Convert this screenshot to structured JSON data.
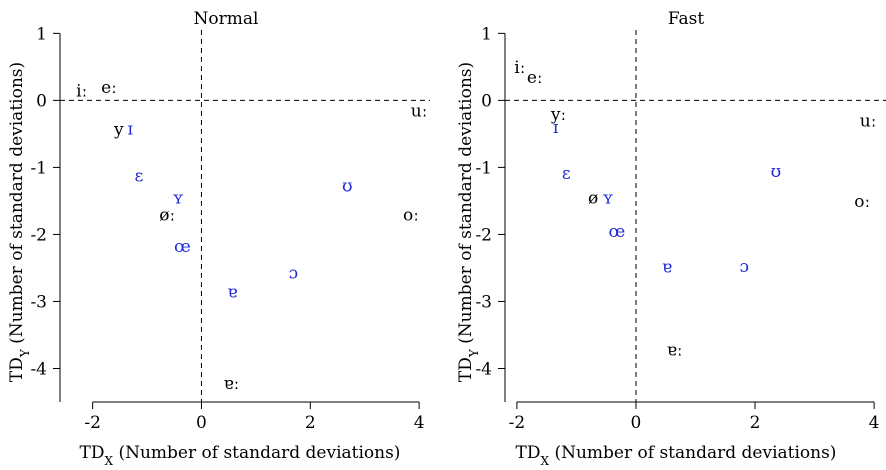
{
  "chart_data": [
    {
      "type": "scatter",
      "title": "Normal",
      "xlabel": "TD",
      "xlabel_sub": "X",
      "xlabel_rest": " (Number of standard deviations)",
      "ylabel": "TD",
      "ylabel_sub": "Y",
      "ylabel_rest": " (Number of standard deviations)",
      "xlim": [
        -2.6,
        4.2
      ],
      "ylim": [
        -4.5,
        1.05
      ],
      "xticks": [
        -2,
        0,
        2,
        4
      ],
      "yticks": [
        1,
        0,
        -1,
        -2,
        -3,
        -4
      ],
      "reference_lines": {
        "x": 0,
        "y": 0
      },
      "colors": {
        "black": "#000000",
        "blue": "#1f2bd6"
      },
      "points": [
        {
          "label": "iː",
          "x": -2.2,
          "y": 0.15,
          "color": "black"
        },
        {
          "label": "eː",
          "x": -1.7,
          "y": 0.2,
          "color": "black"
        },
        {
          "label": "uː",
          "x": 4.0,
          "y": -0.15,
          "color": "black"
        },
        {
          "label": "y",
          "x": -1.52,
          "y": -0.43,
          "color": "black"
        },
        {
          "label": "ɪ",
          "x": -1.31,
          "y": -0.42,
          "color": "blue"
        },
        {
          "label": "ɛ",
          "x": -1.15,
          "y": -1.12,
          "color": "blue"
        },
        {
          "label": "ʏ",
          "x": -0.43,
          "y": -1.45,
          "color": "blue"
        },
        {
          "label": "øː",
          "x": -0.63,
          "y": -1.7,
          "color": "black"
        },
        {
          "label": "œ",
          "x": -0.35,
          "y": -2.17,
          "color": "blue"
        },
        {
          "label": "ʊ",
          "x": 2.68,
          "y": -1.27,
          "color": "blue"
        },
        {
          "label": "oː",
          "x": 3.85,
          "y": -1.7,
          "color": "black"
        },
        {
          "label": "ɔ",
          "x": 1.69,
          "y": -2.57,
          "color": "blue"
        },
        {
          "label": "ɐ",
          "x": 0.57,
          "y": -2.85,
          "color": "blue"
        },
        {
          "label": "ɐː",
          "x": 0.55,
          "y": -4.22,
          "color": "black"
        }
      ]
    },
    {
      "type": "scatter",
      "title": "Fast",
      "xlabel": "TD",
      "xlabel_sub": "X",
      "xlabel_rest": " (Number of standard deviations)",
      "ylabel": "TD",
      "ylabel_sub": "Y",
      "ylabel_rest": " (Number of standard deviations)",
      "xlim": [
        -2.2,
        4.2
      ],
      "ylim": [
        -4.5,
        1.05
      ],
      "xticks": [
        -2,
        0,
        2,
        4
      ],
      "yticks": [
        1,
        0,
        -1,
        -2,
        -3,
        -4
      ],
      "reference_lines": {
        "x": 0,
        "y": 0
      },
      "colors": {
        "black": "#000000",
        "blue": "#1f2bd6"
      },
      "points": [
        {
          "label": "iː",
          "x": -1.95,
          "y": 0.5,
          "color": "black"
        },
        {
          "label": "eː",
          "x": -1.7,
          "y": 0.35,
          "color": "black"
        },
        {
          "label": "yː",
          "x": -1.3,
          "y": -0.2,
          "color": "black"
        },
        {
          "label": "ɪ",
          "x": -1.35,
          "y": -0.4,
          "color": "blue"
        },
        {
          "label": "uː",
          "x": 3.9,
          "y": -0.3,
          "color": "black"
        },
        {
          "label": "ɛ",
          "x": -1.17,
          "y": -1.08,
          "color": "blue"
        },
        {
          "label": "ʊ",
          "x": 2.35,
          "y": -1.05,
          "color": "blue"
        },
        {
          "label": "ø",
          "x": -0.72,
          "y": -1.45,
          "color": "black"
        },
        {
          "label": "ʏ",
          "x": -0.47,
          "y": -1.45,
          "color": "blue"
        },
        {
          "label": "oː",
          "x": 3.8,
          "y": -1.5,
          "color": "black"
        },
        {
          "label": "œ",
          "x": -0.32,
          "y": -1.95,
          "color": "blue"
        },
        {
          "label": "ɐ",
          "x": 0.52,
          "y": -2.48,
          "color": "blue"
        },
        {
          "label": "ɔ",
          "x": 1.82,
          "y": -2.47,
          "color": "blue"
        },
        {
          "label": "ɐː",
          "x": 0.65,
          "y": -3.72,
          "color": "black"
        }
      ]
    }
  ]
}
